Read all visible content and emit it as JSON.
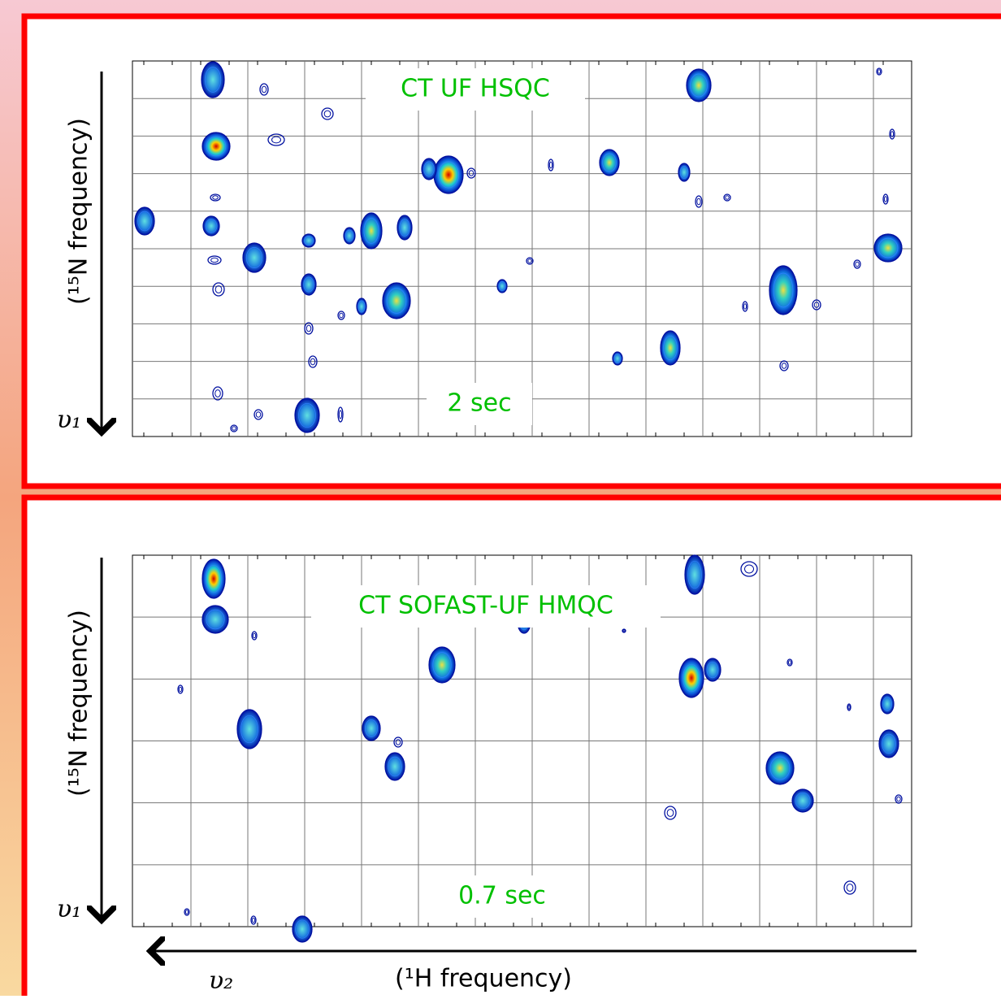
{
  "panels": [
    {
      "title": "CT UF HSQC",
      "time": "2 sec",
      "y_axis_label": "(¹⁵N frequency)",
      "y_axis_symbol": "υ₁"
    },
    {
      "title": "CT SOFAST-UF HMQC",
      "time": "0.7 sec",
      "y_axis_label": "(¹⁵N frequency)",
      "y_axis_symbol": "υ₁"
    }
  ],
  "x_axis": {
    "symbol": "υ₂",
    "label": "(¹H frequency)"
  }
}
